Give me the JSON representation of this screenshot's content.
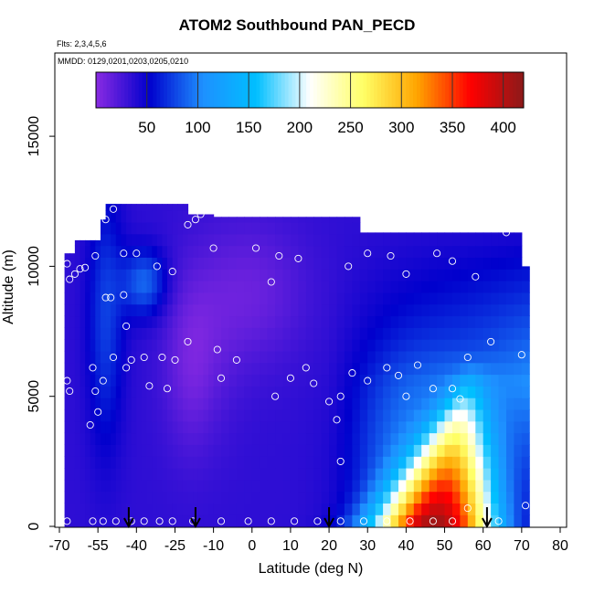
{
  "chart_data": {
    "type": "heatmap",
    "title": "ATOM2 Southbound PAN_PECD",
    "annotations": [
      "Flts: 2,3,4,5,6",
      "MMDD: 0129,0201,0203,0205,0210"
    ],
    "xlabel": "Latitude (deg N)",
    "ylabel": "Altitude (m)",
    "xlim": [
      -70,
      85
    ],
    "ylim": [
      0,
      18000
    ],
    "x_ticks": [
      -70,
      -55,
      -40,
      -25,
      -10,
      0,
      10,
      20,
      30,
      40,
      50,
      60,
      70,
      80
    ],
    "y_ticks": [
      0,
      5000,
      10000,
      15000
    ],
    "colorbar": {
      "range": [
        0,
        420
      ],
      "ticks": [
        50,
        100,
        150,
        200,
        250,
        300,
        350,
        400
      ],
      "colors": [
        "#8a2be2",
        "#0000cd",
        "#1e90ff",
        "#00bfff",
        "#ffffff",
        "#ffff66",
        "#ffa500",
        "#ff0000",
        "#8b1a1a"
      ]
    },
    "arrows_latitude": [
      -43,
      -17,
      20,
      61
    ],
    "sample_points": [
      {
        "lat": -67,
        "alt": 10100
      },
      {
        "lat": -66,
        "alt": 9500
      },
      {
        "lat": -64,
        "alt": 9700
      },
      {
        "lat": -62,
        "alt": 9900
      },
      {
        "lat": -60,
        "alt": 9950
      },
      {
        "lat": -56,
        "alt": 10400
      },
      {
        "lat": -52,
        "alt": 11800
      },
      {
        "lat": -49,
        "alt": 12200
      },
      {
        "lat": -45,
        "alt": 10500
      },
      {
        "lat": -40,
        "alt": 10500
      },
      {
        "lat": -32,
        "alt": 10000
      },
      {
        "lat": -26,
        "alt": 9800
      },
      {
        "lat": -20,
        "alt": 11600
      },
      {
        "lat": -17,
        "alt": 11800
      },
      {
        "lat": -15,
        "alt": 12000
      },
      {
        "lat": -10,
        "alt": 10700
      },
      {
        "lat": 1,
        "alt": 10700
      },
      {
        "lat": 7,
        "alt": 10400
      },
      {
        "lat": 12,
        "alt": 10300
      },
      {
        "lat": 25,
        "alt": 10000
      },
      {
        "lat": 30,
        "alt": 10500
      },
      {
        "lat": 36,
        "alt": 10400
      },
      {
        "lat": 40,
        "alt": 9700
      },
      {
        "lat": 48,
        "alt": 10500
      },
      {
        "lat": 52,
        "alt": 10200
      },
      {
        "lat": 58,
        "alt": 9600
      },
      {
        "lat": 66,
        "alt": 11300
      },
      {
        "lat": -52,
        "alt": 8800
      },
      {
        "lat": -50,
        "alt": 8800
      },
      {
        "lat": -45,
        "alt": 8900
      },
      {
        "lat": -44,
        "alt": 7700
      },
      {
        "lat": -49,
        "alt": 6500
      },
      {
        "lat": -44,
        "alt": 6100
      },
      {
        "lat": -42,
        "alt": 6400
      },
      {
        "lat": -37,
        "alt": 6500
      },
      {
        "lat": -30,
        "alt": 6500
      },
      {
        "lat": -25,
        "alt": 6400
      },
      {
        "lat": -20,
        "alt": 7100
      },
      {
        "lat": -9,
        "alt": 6800
      },
      {
        "lat": -4,
        "alt": 6400
      },
      {
        "lat": 5,
        "alt": 9400
      },
      {
        "lat": 10,
        "alt": 5700
      },
      {
        "lat": 14,
        "alt": 6100
      },
      {
        "lat": 16,
        "alt": 5500
      },
      {
        "lat": 20,
        "alt": 4800
      },
      {
        "lat": 26,
        "alt": 5900
      },
      {
        "lat": 30,
        "alt": 5600
      },
      {
        "lat": 35,
        "alt": 6100
      },
      {
        "lat": 38,
        "alt": 5800
      },
      {
        "lat": 43,
        "alt": 6200
      },
      {
        "lat": 47,
        "alt": 5300
      },
      {
        "lat": 52,
        "alt": 5300
      },
      {
        "lat": 56,
        "alt": 6500
      },
      {
        "lat": 62,
        "alt": 7100
      },
      {
        "lat": 70,
        "alt": 6600
      },
      {
        "lat": -67,
        "alt": 5600
      },
      {
        "lat": -66,
        "alt": 5200
      },
      {
        "lat": -57,
        "alt": 6100
      },
      {
        "lat": -56,
        "alt": 5200
      },
      {
        "lat": -53,
        "alt": 5600
      },
      {
        "lat": -35,
        "alt": 5400
      },
      {
        "lat": -28,
        "alt": 5300
      },
      {
        "lat": -8,
        "alt": 5700
      },
      {
        "lat": 6,
        "alt": 5000
      },
      {
        "lat": 23,
        "alt": 5000
      },
      {
        "lat": 40,
        "alt": 5000
      },
      {
        "lat": 54,
        "alt": 4900
      },
      {
        "lat": -58,
        "alt": 3900
      },
      {
        "lat": -55,
        "alt": 4400
      },
      {
        "lat": 22,
        "alt": 4100
      },
      {
        "lat": 23,
        "alt": 2500
      },
      {
        "lat": 56,
        "alt": 700
      },
      {
        "lat": 71,
        "alt": 800
      },
      {
        "lat": -67,
        "alt": 200
      },
      {
        "lat": -57,
        "alt": 200
      },
      {
        "lat": -53,
        "alt": 200
      },
      {
        "lat": -48,
        "alt": 200
      },
      {
        "lat": -42,
        "alt": 200
      },
      {
        "lat": -37,
        "alt": 200
      },
      {
        "lat": -31,
        "alt": 200
      },
      {
        "lat": -26,
        "alt": 200
      },
      {
        "lat": -18,
        "alt": 200
      },
      {
        "lat": -8,
        "alt": 200
      },
      {
        "lat": -1,
        "alt": 200
      },
      {
        "lat": 5,
        "alt": 200
      },
      {
        "lat": 11,
        "alt": 200
      },
      {
        "lat": 17,
        "alt": 200
      },
      {
        "lat": 23,
        "alt": 200
      },
      {
        "lat": 29,
        "alt": 200
      },
      {
        "lat": 35,
        "alt": 200
      },
      {
        "lat": 41,
        "alt": 200
      },
      {
        "lat": 47,
        "alt": 200
      },
      {
        "lat": 52,
        "alt": 200
      },
      {
        "lat": 64,
        "alt": 200
      }
    ],
    "grid": false
  }
}
